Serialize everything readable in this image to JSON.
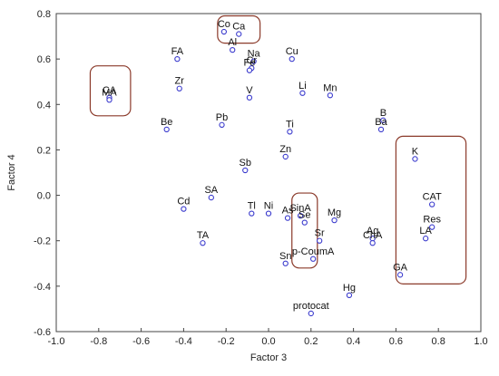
{
  "chart_data": {
    "type": "scatter",
    "title": "",
    "xlabel": "Factor 3",
    "ylabel": "Factor 4",
    "xlim": [
      -1.0,
      1.0
    ],
    "ylim": [
      -0.6,
      0.8
    ],
    "xticks": [
      "-1.0",
      "-0.8",
      "-0.6",
      "-0.4",
      "-0.2",
      "0.0",
      "0.2",
      "0.4",
      "0.6",
      "0.8",
      "1.0"
    ],
    "yticks": [
      "-0.6",
      "-0.4",
      "-0.2",
      "0.0",
      "0.2",
      "0.4",
      "0.6",
      "0.8"
    ],
    "grid": false,
    "point_color": "#3a3acd",
    "highlight_color": "#8b3a2a",
    "points": [
      {
        "label": "Co",
        "x": -0.21,
        "y": 0.72
      },
      {
        "label": "Ca",
        "x": -0.14,
        "y": 0.71
      },
      {
        "label": "Al",
        "x": -0.17,
        "y": 0.64
      },
      {
        "label": "FA",
        "x": -0.43,
        "y": 0.6
      },
      {
        "label": "Na",
        "x": -0.07,
        "y": 0.59
      },
      {
        "label": "Cu",
        "x": 0.11,
        "y": 0.6
      },
      {
        "label": "Cr",
        "x": -0.08,
        "y": 0.56
      },
      {
        "label": "Fe",
        "x": -0.09,
        "y": 0.55
      },
      {
        "label": "CA",
        "x": -0.75,
        "y": 0.43
      },
      {
        "label": "MA",
        "x": -0.75,
        "y": 0.42
      },
      {
        "label": "Zr",
        "x": -0.42,
        "y": 0.47
      },
      {
        "label": "V",
        "x": -0.09,
        "y": 0.43
      },
      {
        "label": "Li",
        "x": 0.16,
        "y": 0.45
      },
      {
        "label": "Mn",
        "x": 0.29,
        "y": 0.44
      },
      {
        "label": "Be",
        "x": -0.48,
        "y": 0.29
      },
      {
        "label": "Pb",
        "x": -0.22,
        "y": 0.31
      },
      {
        "label": "Ti",
        "x": 0.1,
        "y": 0.28
      },
      {
        "label": "B",
        "x": 0.54,
        "y": 0.33
      },
      {
        "label": "Ba",
        "x": 0.53,
        "y": 0.29
      },
      {
        "label": "Zn",
        "x": 0.08,
        "y": 0.17
      },
      {
        "label": "Sb",
        "x": -0.11,
        "y": 0.11
      },
      {
        "label": "K",
        "x": 0.69,
        "y": 0.16
      },
      {
        "label": "SA",
        "x": -0.27,
        "y": -0.01
      },
      {
        "label": "Cd",
        "x": -0.4,
        "y": -0.06
      },
      {
        "label": "Tl",
        "x": -0.08,
        "y": -0.08
      },
      {
        "label": "Ni",
        "x": 0.0,
        "y": -0.08
      },
      {
        "label": "As",
        "x": 0.09,
        "y": -0.1
      },
      {
        "label": "SinA",
        "x": 0.15,
        "y": -0.09
      },
      {
        "label": "Se",
        "x": 0.17,
        "y": -0.12
      },
      {
        "label": "Mg",
        "x": 0.31,
        "y": -0.11
      },
      {
        "label": "CAT",
        "x": 0.77,
        "y": -0.04
      },
      {
        "label": "Res",
        "x": 0.77,
        "y": -0.14
      },
      {
        "label": "TA",
        "x": -0.31,
        "y": -0.21
      },
      {
        "label": "Sr",
        "x": 0.24,
        "y": -0.2
      },
      {
        "label": "Ag",
        "x": 0.49,
        "y": -0.19
      },
      {
        "label": "ChA",
        "x": 0.49,
        "y": -0.21
      },
      {
        "label": "LA",
        "x": 0.74,
        "y": -0.19
      },
      {
        "label": "Sn",
        "x": 0.08,
        "y": -0.3
      },
      {
        "label": "p-CoumA",
        "x": 0.21,
        "y": -0.28
      },
      {
        "label": "GA",
        "x": 0.62,
        "y": -0.35
      },
      {
        "label": "Hg",
        "x": 0.38,
        "y": -0.44
      },
      {
        "label": "protocat",
        "x": 0.2,
        "y": -0.52
      }
    ],
    "highlight_boxes": [
      {
        "x0": -0.84,
        "x1": -0.65,
        "y0": 0.35,
        "y1": 0.57
      },
      {
        "x0": -0.24,
        "x1": -0.04,
        "y0": 0.67,
        "y1": 0.79
      },
      {
        "x0": 0.11,
        "x1": 0.23,
        "y0": -0.32,
        "y1": 0.01
      },
      {
        "x0": 0.6,
        "x1": 0.93,
        "y0": -0.39,
        "y1": 0.26
      }
    ]
  }
}
